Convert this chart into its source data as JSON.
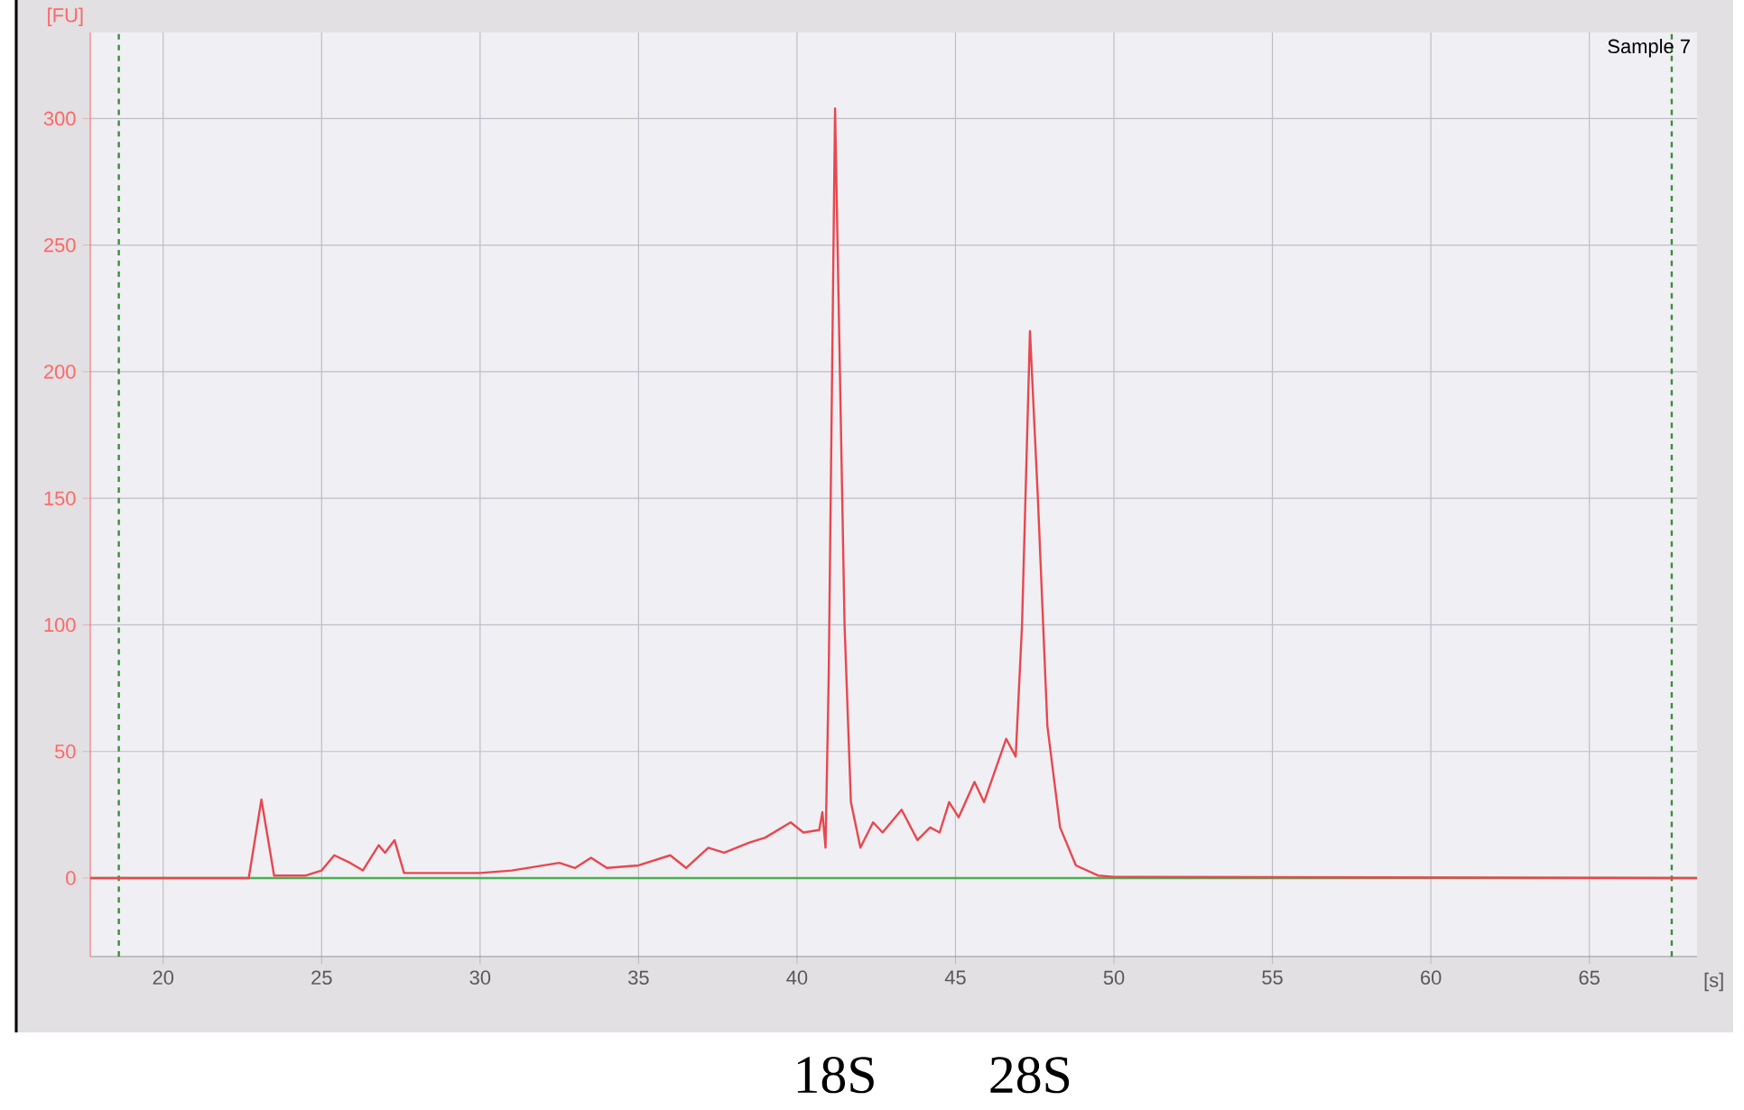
{
  "chart_data": {
    "type": "line",
    "title": "Sample 7",
    "xlabel": "[s]",
    "ylabel": "[FU]",
    "xlim": [
      17.7,
      68.4
    ],
    "ylim": [
      -31,
      334
    ],
    "xticks": [
      20,
      25,
      30,
      35,
      40,
      45,
      50,
      55,
      60,
      65
    ],
    "yticks": [
      0,
      50,
      100,
      150,
      200,
      250,
      300
    ],
    "grid": true,
    "line_style": "solid",
    "marker": "none",
    "series": [
      {
        "color": "#e8474f",
        "x": [
          17.7,
          22.7,
          23.1,
          23.5,
          24.5,
          25.0,
          25.4,
          25.9,
          26.3,
          26.8,
          27.0,
          27.3,
          27.6,
          28.5,
          30.0,
          31.0,
          32.5,
          33.0,
          33.5,
          34.0,
          35.0,
          36.0,
          36.5,
          37.2,
          37.7,
          38.5,
          39.0,
          39.8,
          40.2,
          40.7,
          40.8,
          40.9,
          41.0,
          41.2,
          41.5,
          41.7,
          42.0,
          42.4,
          42.7,
          43.3,
          43.8,
          44.2,
          44.5,
          44.8,
          45.1,
          45.6,
          45.9,
          46.6,
          46.9,
          47.1,
          47.35,
          47.6,
          47.9,
          48.3,
          48.8,
          49.5,
          50.0,
          68.4
        ],
        "values": [
          0,
          0,
          31,
          1,
          1,
          3,
          9,
          6,
          3,
          13,
          10,
          15,
          2,
          2,
          2,
          3,
          6,
          4,
          8,
          4,
          5,
          9,
          4,
          12,
          10,
          14,
          16,
          22,
          18,
          19,
          26,
          12,
          80,
          304,
          100,
          30,
          12,
          22,
          18,
          27,
          15,
          20,
          18,
          30,
          24,
          38,
          30,
          55,
          48,
          100,
          216,
          150,
          60,
          20,
          5,
          1,
          0.5,
          0
        ]
      }
    ],
    "ref_lines": [
      {
        "axis": "x",
        "value": 18.6,
        "color": "#3a8f3a",
        "line_style": "dashed"
      },
      {
        "axis": "x",
        "value": 67.6,
        "color": "#3a8f3a",
        "line_style": "dashed"
      },
      {
        "axis": "y",
        "value": 0,
        "color": "#4caf50",
        "line_style": "solid"
      }
    ],
    "annotations": [
      "18S",
      "28S"
    ]
  }
}
